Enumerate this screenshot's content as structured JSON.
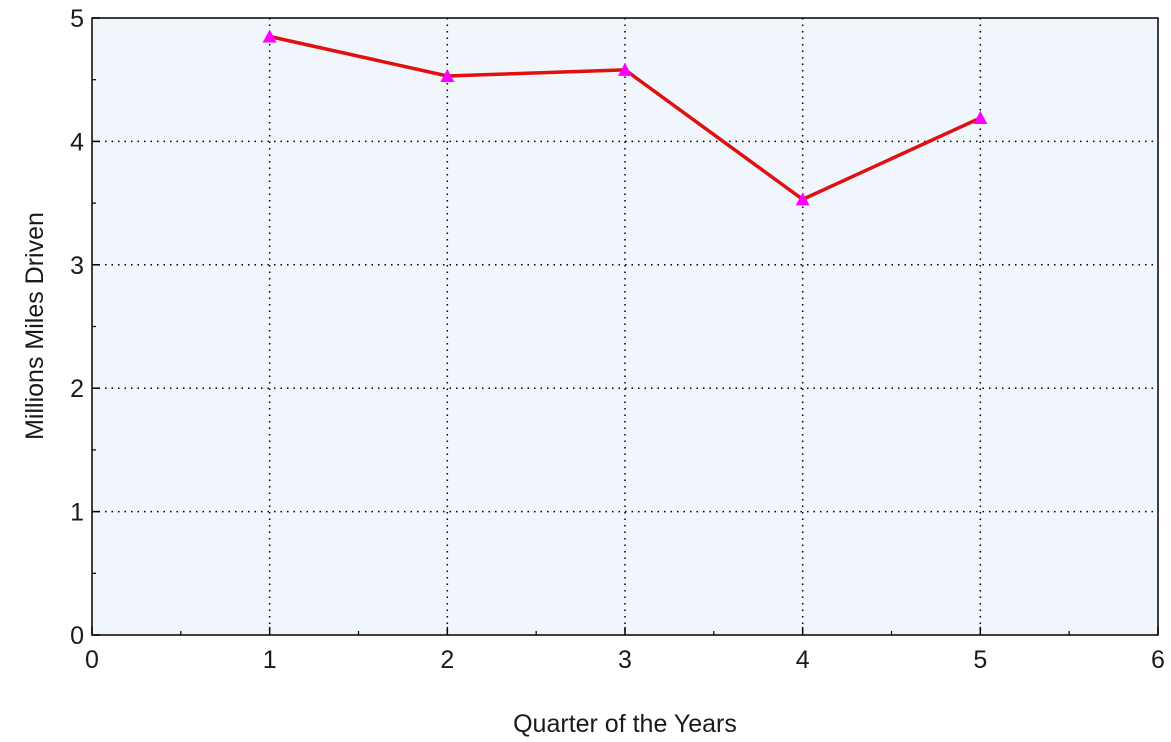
{
  "chart_data": {
    "type": "line",
    "title": "",
    "xlabel": "Quarter of the Years",
    "ylabel": "Millions Miles Driven",
    "xlim": [
      0,
      6
    ],
    "ylim": [
      0,
      5
    ],
    "x_ticks": [
      "0",
      "1",
      "2",
      "3",
      "4",
      "5",
      "6"
    ],
    "y_ticks": [
      "0",
      "1",
      "2",
      "3",
      "4",
      "5"
    ],
    "grid": true,
    "series": [
      {
        "x": [
          1,
          2,
          3,
          4,
          5
        ],
        "values": [
          4.85,
          4.53,
          4.58,
          3.53,
          4.19
        ],
        "line_color": "#e01010",
        "marker": "triangle",
        "marker_color": "#ff00ff"
      }
    ],
    "plot_background": "#f0f6fc"
  }
}
